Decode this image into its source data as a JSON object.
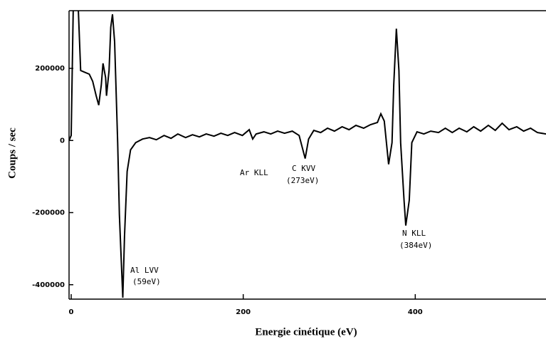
{
  "chart_data": {
    "type": "line",
    "xlabel": "Energie cinétique (eV)",
    "ylabel": "Coups / sec",
    "color": "#000000",
    "x": [
      -2.5,
      0,
      2.5,
      6,
      8,
      11,
      15,
      21,
      25,
      29,
      32,
      35,
      37,
      40,
      41,
      44,
      46,
      48,
      50.5,
      54,
      56,
      60,
      62,
      65,
      69,
      75,
      83,
      91,
      99,
      108,
      116,
      124,
      133,
      141,
      149,
      157,
      166,
      174,
      182,
      190,
      199,
      207,
      211,
      215,
      224,
      232,
      240,
      248,
      257,
      265,
      272,
      276,
      282,
      290,
      298,
      306,
      315,
      323,
      331,
      340,
      348,
      356,
      360,
      364,
      369,
      373,
      375,
      378,
      381,
      383,
      387,
      389,
      393,
      396,
      402,
      410,
      418,
      427,
      435,
      443,
      451,
      460,
      468,
      476,
      485,
      493,
      501,
      509,
      518,
      526,
      534,
      542,
      552
    ],
    "values": [
      0,
      14000,
      380000,
      380000,
      380000,
      194000,
      190000,
      184000,
      164000,
      124000,
      98000,
      154000,
      214000,
      174000,
      124000,
      194000,
      314000,
      350000,
      274000,
      -6000,
      -206000,
      -436000,
      -266000,
      -86000,
      -26000,
      -6000,
      4000,
      8000,
      2000,
      14000,
      6000,
      18000,
      8000,
      16000,
      10000,
      18000,
      12000,
      20000,
      14000,
      22000,
      14000,
      30000,
      4000,
      18000,
      24000,
      18000,
      26000,
      20000,
      26000,
      14000,
      -50000,
      4000,
      28000,
      22000,
      34000,
      26000,
      38000,
      30000,
      42000,
      34000,
      44000,
      50000,
      74000,
      54000,
      -66000,
      -6000,
      154000,
      310000,
      194000,
      -6000,
      -166000,
      -236000,
      -166000,
      -6000,
      24000,
      18000,
      26000,
      22000,
      34000,
      22000,
      34000,
      24000,
      38000,
      26000,
      42000,
      28000,
      48000,
      30000,
      38000,
      26000,
      34000,
      22000,
      18000
    ],
    "xlim": [
      -2.5,
      552
    ],
    "xticks": [
      0,
      200,
      400
    ],
    "ylim": [
      -440000,
      360000
    ],
    "yticks": [
      200000,
      0,
      -200000,
      -400000
    ],
    "annotations": [
      "Al LVV",
      "(59eV)",
      "Ar KLL",
      "C KVV",
      "(273eV)",
      "N KLL",
      "(384eV)"
    ]
  }
}
